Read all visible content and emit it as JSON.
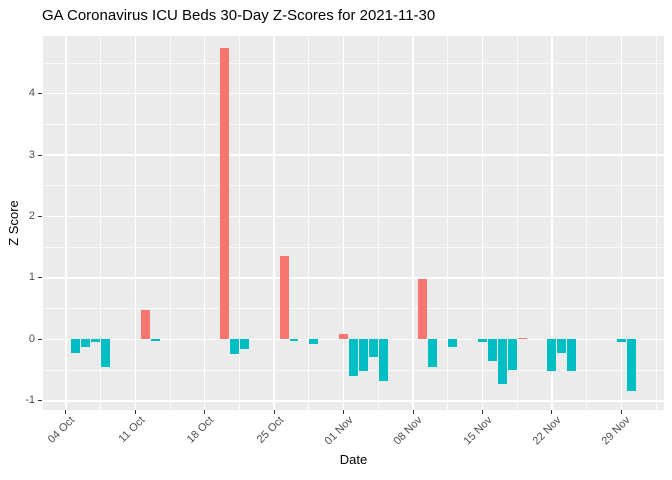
{
  "colors": {
    "positive_bar": "#F8766D",
    "negative_bar": "#00BFC4",
    "panel_background": "#EBEBEB",
    "gridline": "#FFFFFF",
    "tick_text": "#4D4D4D",
    "axis_text": "#000000",
    "tick_mark": "#333333"
  },
  "chart_data": {
    "type": "bar",
    "title": "GA Coronavirus ICU Beds 30-Day Z-Scores for 2021-11-30",
    "xlabel": "Date",
    "ylabel": "Z Score",
    "x_origin": "2021-10-04",
    "xlim_days": [
      -2.3,
      60.3
    ],
    "ylim": [
      -1.15,
      4.94
    ],
    "y_ticks": [
      -1,
      0,
      1,
      2,
      3,
      4
    ],
    "y_minor_ticks": [
      -0.5,
      0.5,
      1.5,
      2.5,
      3.5,
      4.5
    ],
    "x_ticks": [
      {
        "date": "2021-10-04",
        "label": "04 Oct"
      },
      {
        "date": "2021-10-11",
        "label": "11 Oct"
      },
      {
        "date": "2021-10-18",
        "label": "18 Oct"
      },
      {
        "date": "2021-10-25",
        "label": "25 Oct"
      },
      {
        "date": "2021-11-01",
        "label": "01 Nov"
      },
      {
        "date": "2021-11-08",
        "label": "08 Nov"
      },
      {
        "date": "2021-11-15",
        "label": "15 Nov"
      },
      {
        "date": "2021-11-22",
        "label": "22 Nov"
      },
      {
        "date": "2021-11-29",
        "label": "29 Nov"
      }
    ],
    "x_minor_day_offsets": [
      3.5,
      10.5,
      17.5,
      24.5,
      31.5,
      38.5,
      45.5,
      52.5,
      59.5
    ],
    "bar_width_days": 0.9,
    "legend": "none",
    "bars": [
      {
        "date": "2021-10-05",
        "value": -0.22
      },
      {
        "date": "2021-10-06",
        "value": -0.13
      },
      {
        "date": "2021-10-07",
        "value": -0.04
      },
      {
        "date": "2021-10-08",
        "value": -0.45
      },
      {
        "date": "2021-10-12",
        "value": 0.48
      },
      {
        "date": "2021-10-13",
        "value": -0.03
      },
      {
        "date": "2021-10-20",
        "value": 4.74
      },
      {
        "date": "2021-10-21",
        "value": -0.24
      },
      {
        "date": "2021-10-22",
        "value": -0.16
      },
      {
        "date": "2021-10-26",
        "value": 1.36
      },
      {
        "date": "2021-10-27",
        "value": -0.03
      },
      {
        "date": "2021-10-29",
        "value": -0.08
      },
      {
        "date": "2021-11-01",
        "value": 0.09
      },
      {
        "date": "2021-11-02",
        "value": -0.6
      },
      {
        "date": "2021-11-03",
        "value": -0.52
      },
      {
        "date": "2021-11-04",
        "value": -0.29
      },
      {
        "date": "2021-11-05",
        "value": -0.68
      },
      {
        "date": "2021-11-09",
        "value": 0.98
      },
      {
        "date": "2021-11-10",
        "value": -0.45
      },
      {
        "date": "2021-11-12",
        "value": -0.12
      },
      {
        "date": "2021-11-15",
        "value": -0.04
      },
      {
        "date": "2021-11-16",
        "value": -0.36
      },
      {
        "date": "2021-11-17",
        "value": -0.72
      },
      {
        "date": "2021-11-18",
        "value": -0.5
      },
      {
        "date": "2021-11-19",
        "value": 0.03
      },
      {
        "date": "2021-11-22",
        "value": -0.51
      },
      {
        "date": "2021-11-23",
        "value": -0.23
      },
      {
        "date": "2021-11-24",
        "value": -0.51
      },
      {
        "date": "2021-11-29",
        "value": -0.04
      },
      {
        "date": "2021-11-30",
        "value": -0.84
      }
    ]
  }
}
